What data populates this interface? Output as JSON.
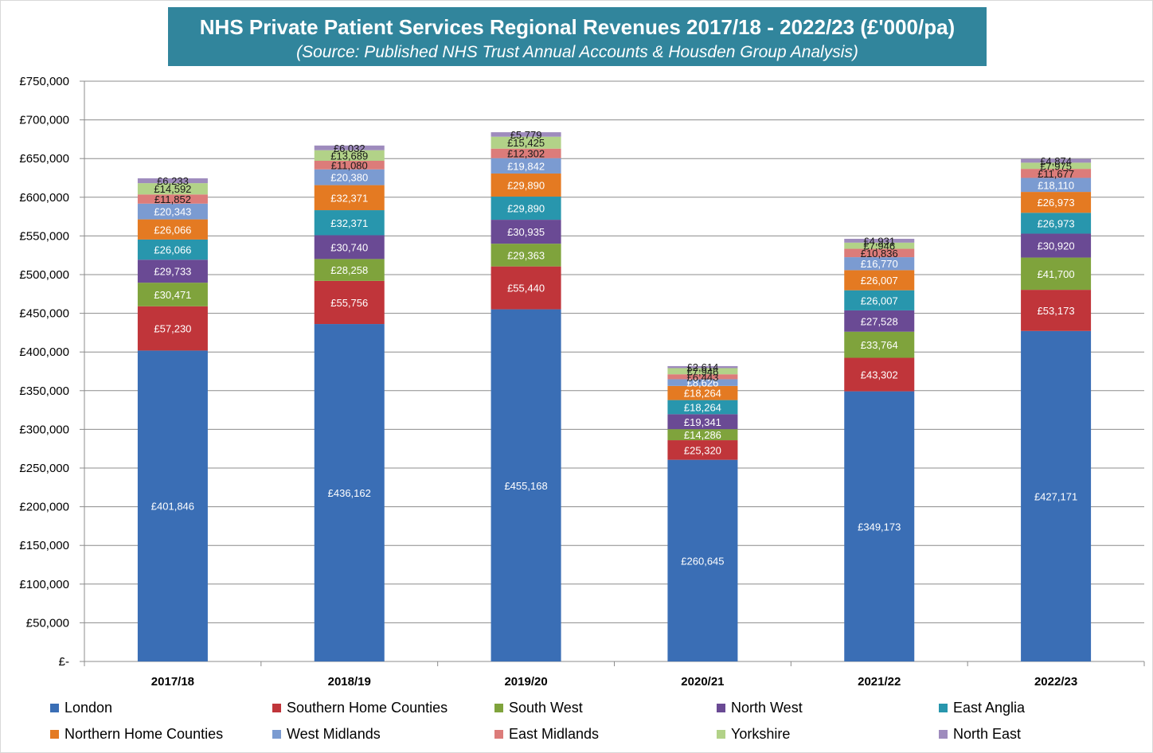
{
  "chart_data": {
    "type": "bar",
    "stacked": true,
    "title": "NHS Private Patient Services Regional Revenues 2017/18 - 2022/23 (£'000/pa)",
    "subtitle": "(Source: Published NHS Trust Annual Accounts & Housden Group Analysis)",
    "xlabel": "",
    "ylabel": "",
    "ylim": [
      0,
      750000
    ],
    "yticks": [
      0,
      50000,
      100000,
      150000,
      200000,
      250000,
      300000,
      350000,
      400000,
      450000,
      500000,
      550000,
      600000,
      650000,
      700000,
      750000
    ],
    "ytick_labels": [
      "£-",
      "£50,000",
      "£100,000",
      "£150,000",
      "£200,000",
      "£250,000",
      "£300,000",
      "£350,000",
      "£400,000",
      "£450,000",
      "£500,000",
      "£550,000",
      "£600,000",
      "£650,000",
      "£700,000",
      "£750,000"
    ],
    "grid": true,
    "legend_position": "bottom",
    "categories": [
      "2017/18",
      "2018/19",
      "2019/20",
      "2020/21",
      "2021/22",
      "2022/23"
    ],
    "series": [
      {
        "name": "London",
        "color": "#3a6eb5",
        "values": [
          401846,
          436162,
          455168,
          260645,
          349173,
          427171
        ]
      },
      {
        "name": "Southern Home Counties",
        "color": "#c0353a",
        "values": [
          57230,
          55756,
          55440,
          25320,
          43302,
          53173
        ]
      },
      {
        "name": "South West",
        "color": "#7fa33c",
        "values": [
          30471,
          28258,
          29363,
          14286,
          33764,
          41700
        ]
      },
      {
        "name": "North West",
        "color": "#6a4a94",
        "values": [
          29733,
          30740,
          30935,
          19341,
          27528,
          30920
        ]
      },
      {
        "name": "East Anglia",
        "color": "#2896ad",
        "values": [
          26066,
          32371,
          29890,
          18264,
          26007,
          26973
        ]
      },
      {
        "name": "Northern Home Counties",
        "color": "#e47a22",
        "values": [
          26066,
          32371,
          29890,
          18264,
          26007,
          26973
        ]
      },
      {
        "name": "West Midlands",
        "color": "#7b9bd1",
        "values": [
          20343,
          20380,
          19842,
          8626,
          16770,
          18110
        ]
      },
      {
        "name": "East Midlands",
        "color": "#dc7c7a",
        "values": [
          11852,
          11080,
          12302,
          6443,
          10836,
          11677
        ]
      },
      {
        "name": "Yorkshire",
        "color": "#b2d288",
        "values": [
          14592,
          13689,
          15425,
          7946,
          7946,
          7975
        ]
      },
      {
        "name": "North East",
        "color": "#9e8bbd",
        "values": [
          6233,
          6032,
          5779,
          2614,
          4931,
          4874
        ]
      }
    ],
    "data_labels": [
      [
        "£401,846",
        "£436,162",
        "£455,168",
        "£260,645",
        "£349,173",
        "£427,171"
      ],
      [
        "£57,230",
        "£55,756",
        "£55,440",
        "£25,320",
        "£43,302",
        "£53,173"
      ],
      [
        "£30,471",
        "£28,258",
        "£29,363",
        "£14,286",
        "£33,764",
        "£41,700"
      ],
      [
        "£29,733",
        "£30,740",
        "£30,935",
        "£19,341",
        "£27,528",
        "£30,920"
      ],
      [
        "£26,066",
        "£32,371",
        "£29,890",
        "£18,264",
        "£26,007",
        "£26,973"
      ],
      [
        "£26,066",
        "£32,371",
        "£29,890",
        "£18,264",
        "£26,007",
        "£26,973"
      ],
      [
        "£20,343",
        "£20,380",
        "£19,842",
        "£8,626",
        "£16,770",
        "£18,110"
      ],
      [
        "£11,852",
        "£11,080",
        "£12,302",
        "£6,443",
        "£10,836",
        "£11,677"
      ],
      [
        "£14,592",
        "£13,689",
        "£15,425",
        "£7,946",
        "£7,946",
        "£7,975"
      ],
      [
        "£6,233",
        "£6,032",
        "£5,779",
        "£2,614",
        "£4,931",
        "£4,874"
      ]
    ]
  }
}
